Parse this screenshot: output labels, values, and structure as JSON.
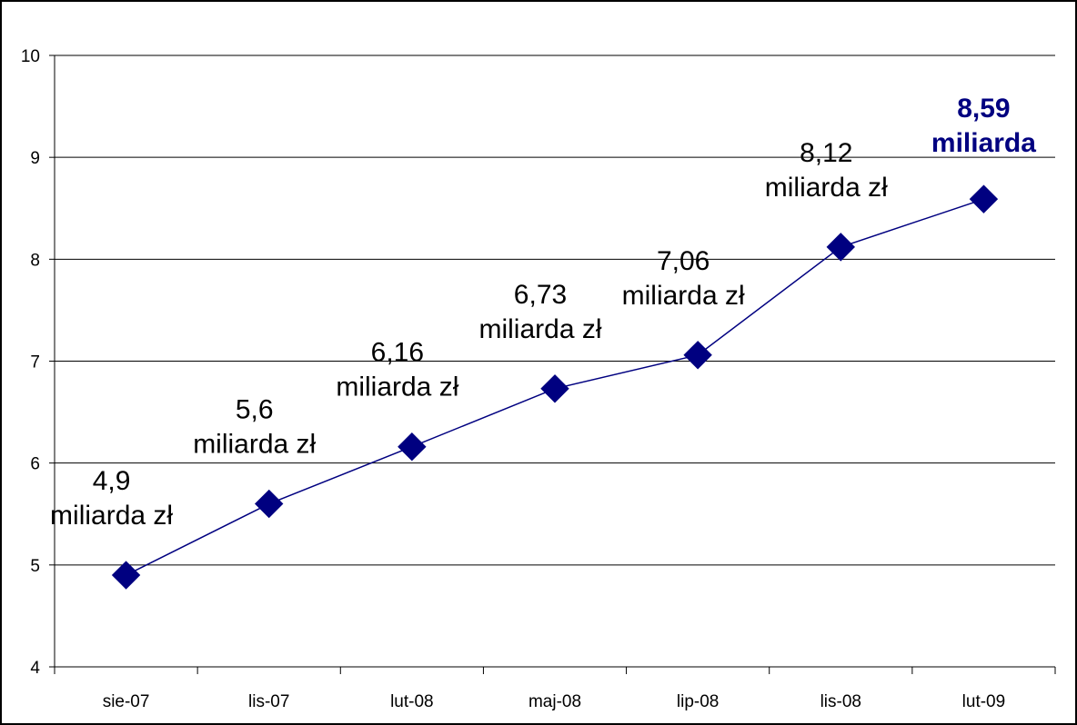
{
  "chart_data": {
    "type": "line",
    "categories": [
      "sie-07",
      "lis-07",
      "lut-08",
      "maj-08",
      "lip-08",
      "lis-08",
      "lut-09"
    ],
    "series": [
      {
        "values": [
          4.9,
          5.6,
          6.16,
          6.73,
          7.06,
          8.12,
          8.59
        ]
      }
    ],
    "data_labels": [
      [
        "4,9",
        "miliarda zł"
      ],
      [
        "5,6",
        "miliarda zł"
      ],
      [
        "6,16",
        "miliarda zł"
      ],
      [
        "6,73",
        "miliarda zł"
      ],
      [
        "7,06",
        "miliarda zł"
      ],
      [
        "8,12",
        "miliarda zł"
      ],
      [
        "8,59",
        "miliarda"
      ]
    ],
    "highlighted_label_index": 6,
    "y_ticks": [
      "4",
      "5",
      "6",
      "7",
      "8",
      "9",
      "10"
    ],
    "ylim": [
      4,
      10
    ],
    "grid": true,
    "legend": "none",
    "line_color": "#000080",
    "marker": "diamond",
    "highlight_color": "#000080"
  }
}
